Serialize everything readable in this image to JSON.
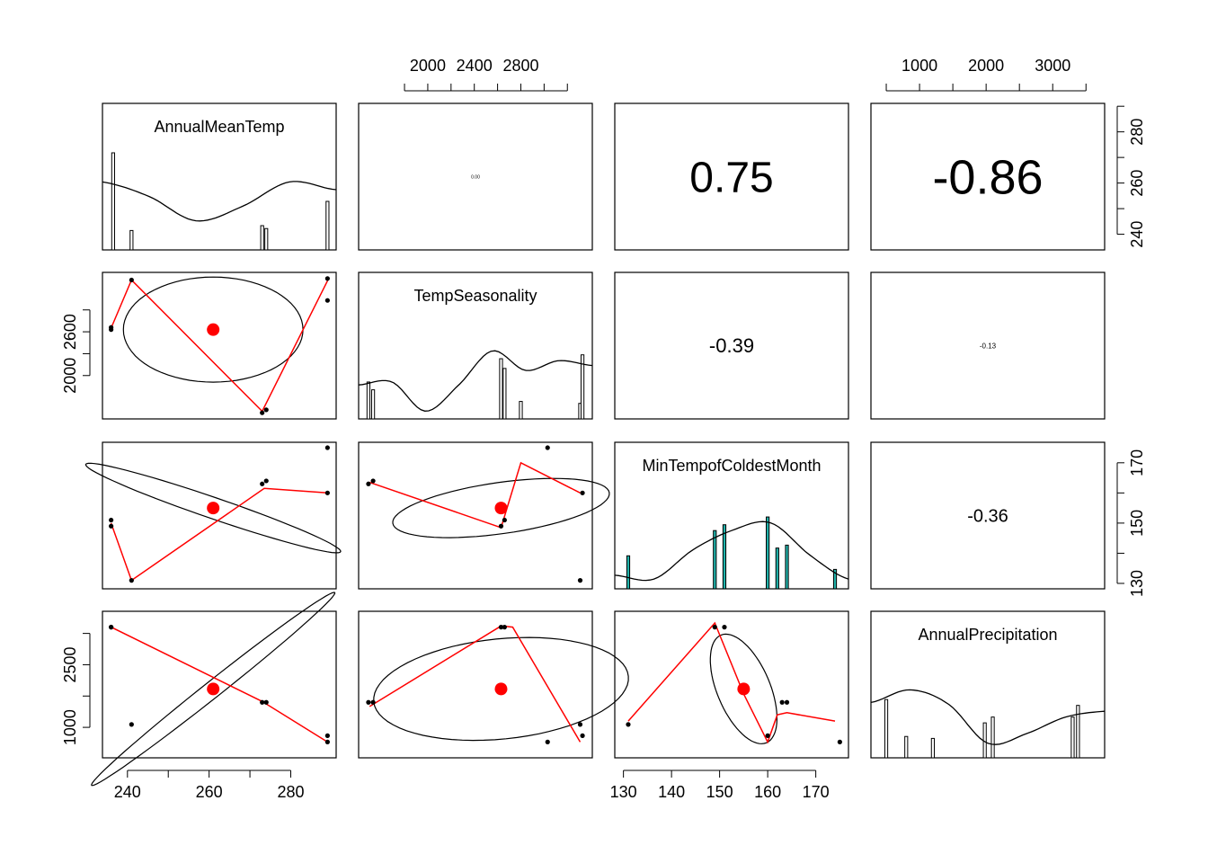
{
  "chart_data": {
    "type": "scatter",
    "subtype": "pairs-panels",
    "variables": [
      "AnnualMeanTemp",
      "TempSeasonality",
      "MinTempofColdestMonth",
      "AnnualPrecipitation"
    ],
    "ranges": {
      "AnnualMeanTemp": [
        236,
        289
      ],
      "TempSeasonality": [
        1480,
        3340
      ],
      "MinTempofColdestMonth": [
        130,
        175
      ],
      "AnnualPrecipitation": [
        400,
        3650
      ]
    },
    "outer_axes": {
      "top": [
        {
          "column": 2,
          "ticks": [
            1800,
            2000,
            2200,
            2400,
            2600,
            2800,
            3000,
            3200
          ],
          "labels": [
            "2000",
            "2400",
            "2800"
          ]
        },
        {
          "column": 4,
          "ticks": [
            500,
            1000,
            1500,
            2000,
            2500,
            3000,
            3500
          ],
          "labels": [
            "1000",
            "2000",
            "3000"
          ]
        }
      ],
      "bottom": [
        {
          "column": 1,
          "ticks": [
            240,
            250,
            260,
            270,
            280
          ],
          "labels": [
            "240",
            "260",
            "280"
          ]
        },
        {
          "column": 3,
          "ticks": [
            130,
            140,
            150,
            160,
            170
          ],
          "labels": [
            "130",
            "140",
            "150",
            "160",
            "170"
          ]
        }
      ],
      "left": [
        {
          "row": 2,
          "ticks": [
            2000,
            2300,
            2600,
            2900
          ],
          "labels": [
            "2000",
            "2600"
          ]
        },
        {
          "row": 4,
          "ticks": [
            1000,
            1750,
            2500,
            3250
          ],
          "labels": [
            "1000",
            "2500"
          ]
        }
      ],
      "right": [
        {
          "row": 1,
          "ticks": [
            240,
            250,
            260,
            270,
            280,
            290
          ],
          "labels": [
            "240",
            "260",
            "280"
          ]
        },
        {
          "row": 3,
          "ticks": [
            130,
            140,
            150,
            160,
            170
          ],
          "labels": [
            "130",
            "150",
            "170"
          ]
        }
      ]
    },
    "observations": [
      {
        "AnnualMeanTemp": 236,
        "TempSeasonality": 2630,
        "MinTempofColdestMonth": 149,
        "AnnualPrecipitation": 3400
      },
      {
        "AnnualMeanTemp": 236,
        "TempSeasonality": 2660,
        "MinTempofColdestMonth": 151,
        "AnnualPrecipitation": 3400
      },
      {
        "AnnualMeanTemp": 241,
        "TempSeasonality": 3310,
        "MinTempofColdestMonth": 131,
        "AnnualPrecipitation": 1070
      },
      {
        "AnnualMeanTemp": 273,
        "TempSeasonality": 1490,
        "MinTempofColdestMonth": 163,
        "AnnualPrecipitation": 1600
      },
      {
        "AnnualMeanTemp": 274,
        "TempSeasonality": 1530,
        "MinTempofColdestMonth": 164,
        "AnnualPrecipitation": 1600
      },
      {
        "AnnualMeanTemp": 289,
        "TempSeasonality": 3330,
        "MinTempofColdestMonth": 160,
        "AnnualPrecipitation": 800
      },
      {
        "AnnualMeanTemp": 289,
        "TempSeasonality": 3030,
        "MinTempofColdestMonth": 175,
        "AnnualPrecipitation": 650
      }
    ],
    "means": {
      "AnnualMeanTemp": 261,
      "TempSeasonality": 2630,
      "MinTempofColdestMonth": 155,
      "AnnualPrecipitation": 1920
    },
    "correlations": [
      {
        "row": 1,
        "col": 2,
        "label": "0.00",
        "size": 5
      },
      {
        "row": 1,
        "col": 3,
        "label": "0.75",
        "size": 48
      },
      {
        "row": 1,
        "col": 4,
        "label": "-0.86",
        "size": 54
      },
      {
        "row": 2,
        "col": 3,
        "label": "-0.39",
        "size": 22
      },
      {
        "row": 2,
        "col": 4,
        "label": "-0.13",
        "size": 8
      },
      {
        "row": 3,
        "col": 4,
        "label": "-0.36",
        "size": 20
      }
    ],
    "ellipses": [
      {
        "row": 2,
        "col": 1,
        "cx": 261,
        "cy": 2630,
        "rx": 22,
        "ry": 720,
        "angle": 0
      },
      {
        "row": 3,
        "col": 1,
        "cx": 261,
        "cy": 155,
        "rx": 33,
        "ry": 3.5,
        "angle": 0.33
      },
      {
        "row": 3,
        "col": 2,
        "cx": 2630,
        "cy": 155,
        "rx": 940,
        "ry": 8.5,
        "angle": -0.14
      },
      {
        "row": 4,
        "col": 1,
        "cx": 261,
        "cy": 1920,
        "rx": 38,
        "ry": 200,
        "angle": -0.67
      },
      {
        "row": 4,
        "col": 2,
        "cx": 2630,
        "cy": 1920,
        "rx": 1100,
        "ry": 1200,
        "angle": -0.1
      },
      {
        "row": 4,
        "col": 3,
        "cx": 155,
        "cy": 1920,
        "rx": 5.5,
        "ry": 1400,
        "angle": -0.4
      }
    ],
    "smoothers": [
      {
        "row": 2,
        "col": 1,
        "points": [
          [
            236,
            2650
          ],
          [
            241,
            3310
          ],
          [
            273,
            1510
          ],
          [
            289,
            3300
          ]
        ]
      },
      {
        "row": 3,
        "col": 1,
        "points": [
          [
            236,
            150
          ],
          [
            241,
            131
          ],
          [
            273.5,
            161.5
          ],
          [
            289,
            160
          ]
        ]
      },
      {
        "row": 3,
        "col": 2,
        "points": [
          [
            1500,
            163.5
          ],
          [
            2630,
            148.5
          ],
          [
            2800,
            170
          ],
          [
            3310,
            160
          ]
        ]
      },
      {
        "row": 4,
        "col": 1,
        "points": [
          [
            236,
            3400
          ],
          [
            273,
            1620
          ],
          [
            289,
            650
          ]
        ]
      },
      {
        "row": 4,
        "col": 2,
        "points": [
          [
            1500,
            1500
          ],
          [
            2630,
            3430
          ],
          [
            2730,
            3400
          ],
          [
            3310,
            650
          ]
        ]
      },
      {
        "row": 4,
        "col": 3,
        "points": [
          [
            131,
            1150
          ],
          [
            149,
            3500
          ],
          [
            155,
            1800
          ],
          [
            160,
            650
          ],
          [
            162,
            1300
          ],
          [
            164,
            1350
          ],
          [
            174,
            1150
          ]
        ]
      }
    ],
    "histograms": [
      {
        "row": 1,
        "bars": [
          [
            236.5,
            1.0
          ],
          [
            241,
            0.2
          ],
          [
            273,
            0.25
          ],
          [
            274,
            0.22
          ],
          [
            289,
            0.5
          ]
        ],
        "density": [
          0.7,
          0.55,
          0.3,
          0.45,
          0.7,
          0.62
        ],
        "label": "AnnualMeanTemp"
      },
      {
        "row": 2,
        "bars": [
          [
            1490,
            0.38
          ],
          [
            1530,
            0.3
          ],
          [
            2630,
            0.62
          ],
          [
            2660,
            0.52
          ],
          [
            2800,
            0.18
          ],
          [
            3310,
            0.16
          ],
          [
            3330,
            0.66
          ]
        ],
        "density": [
          0.35,
          0.38,
          0.08,
          0.35,
          0.7,
          0.5,
          0.6,
          0.55
        ],
        "label": "TempSeasonality"
      },
      {
        "row": 3,
        "bars": [
          [
            131,
            0.34
          ],
          [
            149,
            0.6
          ],
          [
            151,
            0.66
          ],
          [
            160,
            0.74
          ],
          [
            162,
            0.42
          ],
          [
            164,
            0.45
          ],
          [
            174,
            0.2
          ]
        ],
        "density": [
          0.14,
          0.1,
          0.4,
          0.6,
          0.68,
          0.35,
          0.1
        ],
        "label": "MinTempofColdestMonth"
      },
      {
        "row": 4,
        "bars": [
          [
            500,
            0.6
          ],
          [
            800,
            0.22
          ],
          [
            1200,
            0.2
          ],
          [
            1980,
            0.36
          ],
          [
            2100,
            0.42
          ],
          [
            3300,
            0.42
          ],
          [
            3380,
            0.54
          ]
        ],
        "density": [
          0.57,
          0.7,
          0.55,
          0.15,
          0.25,
          0.42,
          0.48
        ],
        "label": "AnnualPrecipitation"
      }
    ]
  }
}
